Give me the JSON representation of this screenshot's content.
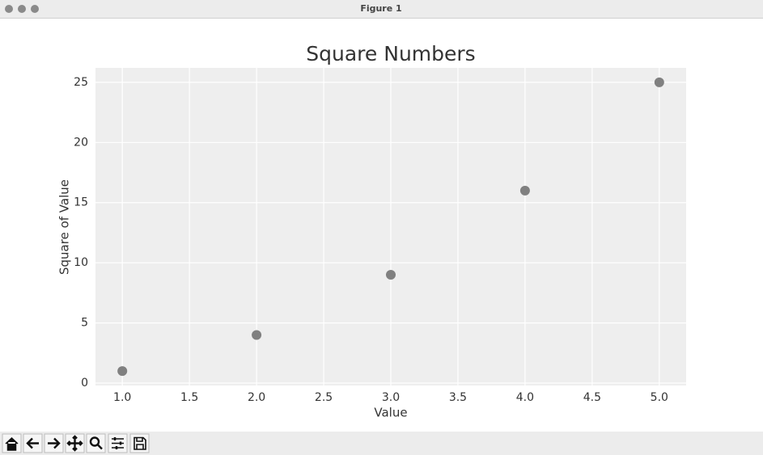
{
  "window": {
    "title": "Figure 1"
  },
  "chart_data": {
    "type": "scatter",
    "title": "Square Numbers",
    "x_label": "Value",
    "y_label": "Square of Value",
    "x": [
      1,
      2,
      3,
      4,
      5
    ],
    "values": [
      1,
      4,
      9,
      16,
      25
    ],
    "color": "#808080",
    "xlim": [
      0.8,
      5.2
    ],
    "xticks": [
      {
        "value": 1,
        "label": "1.0"
      },
      1.5,
      {
        "value": 2,
        "label": "2.0"
      },
      2.5,
      {
        "value": 3,
        "label": "3.0"
      },
      3.5,
      {
        "value": 4,
        "label": "4.0"
      },
      4.5,
      {
        "value": 5,
        "label": "5.0"
      }
    ],
    "ylim": [
      -0.2,
      26.2
    ],
    "yticks": [
      0,
      5,
      10,
      15,
      20,
      25
    ],
    "grid": true
  }
}
